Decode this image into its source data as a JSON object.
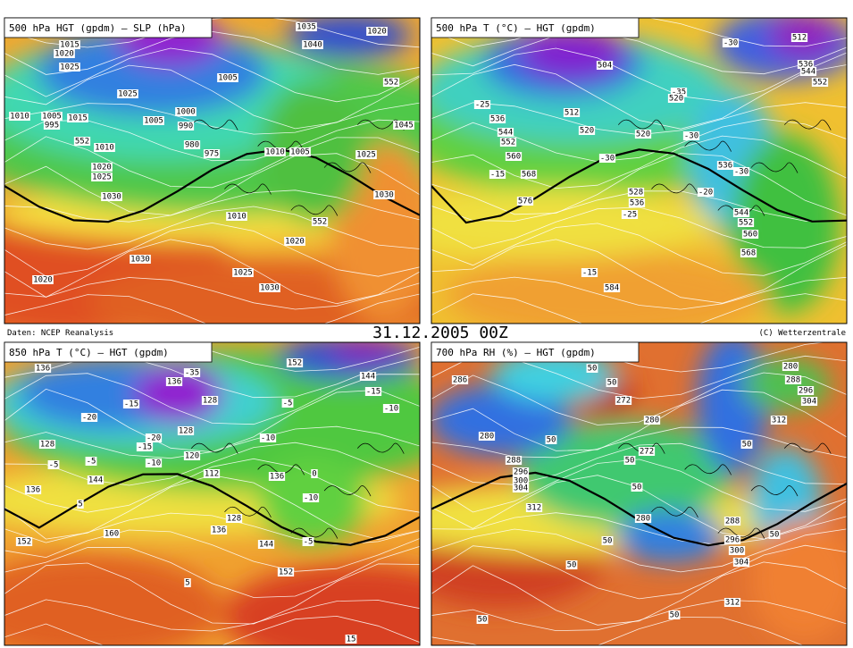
{
  "panels": [
    {
      "title": "500 hPa HGT (gpdm) — SLP (hPa)",
      "labels": [
        "1015",
        "1020",
        "1025",
        "1010",
        "1005",
        "995",
        "1015",
        "552",
        "1010",
        "1020",
        "1025",
        "1030",
        "1030",
        "1020",
        "1025",
        "1005",
        "1005",
        "1000",
        "990",
        "980",
        "975",
        "1010",
        "1020",
        "1025",
        "1030",
        "1035",
        "1040",
        "1020",
        "552",
        "1045",
        "1010",
        "1005",
        "1025",
        "1030",
        "552"
      ]
    },
    {
      "title": "500 hPa T (°C) — HGT (gpdm)",
      "labels": [
        "-25",
        "536",
        "544",
        "552",
        "560",
        "-15",
        "568",
        "576",
        "504",
        "512",
        "520",
        "520",
        "-30",
        "528",
        "536",
        "-25",
        "-35",
        "520",
        "-30",
        "536",
        "-30",
        "-20",
        "544",
        "552",
        "560",
        "568",
        "-15",
        "584",
        "-30",
        "512",
        "536",
        "544",
        "552"
      ]
    },
    {
      "title": "850 hPa T (°C) — HGT (gpdm)",
      "labels": [
        "136",
        "-20",
        "-15",
        "128",
        "-5",
        "136",
        "144",
        "5",
        "160",
        "152",
        "-20",
        "-15",
        "-10",
        "120",
        "112",
        "136",
        "-35",
        "128",
        "128",
        "-5",
        "128",
        "136",
        "144",
        "152",
        "5",
        "152",
        "144",
        "-15",
        "-10",
        "-5",
        "-10",
        "136",
        "0",
        "-10",
        "-5",
        "15"
      ]
    },
    {
      "title": "700 hPa RH (%) — HGT (gpdm)",
      "labels": [
        "286",
        "280",
        "288",
        "296",
        "300",
        "304",
        "312",
        "50",
        "50",
        "272",
        "280",
        "272",
        "50",
        "50",
        "50",
        "280",
        "50",
        "50",
        "288",
        "296",
        "300",
        "304",
        "312",
        "50",
        "280",
        "288",
        "296",
        "304",
        "312",
        "50",
        "50",
        "50"
      ]
    }
  ],
  "footer": {
    "source": "Daten: NCEP Reanalysis",
    "date": "31.12.2005 00Z",
    "credit": "(C) Wetterzentrale"
  }
}
